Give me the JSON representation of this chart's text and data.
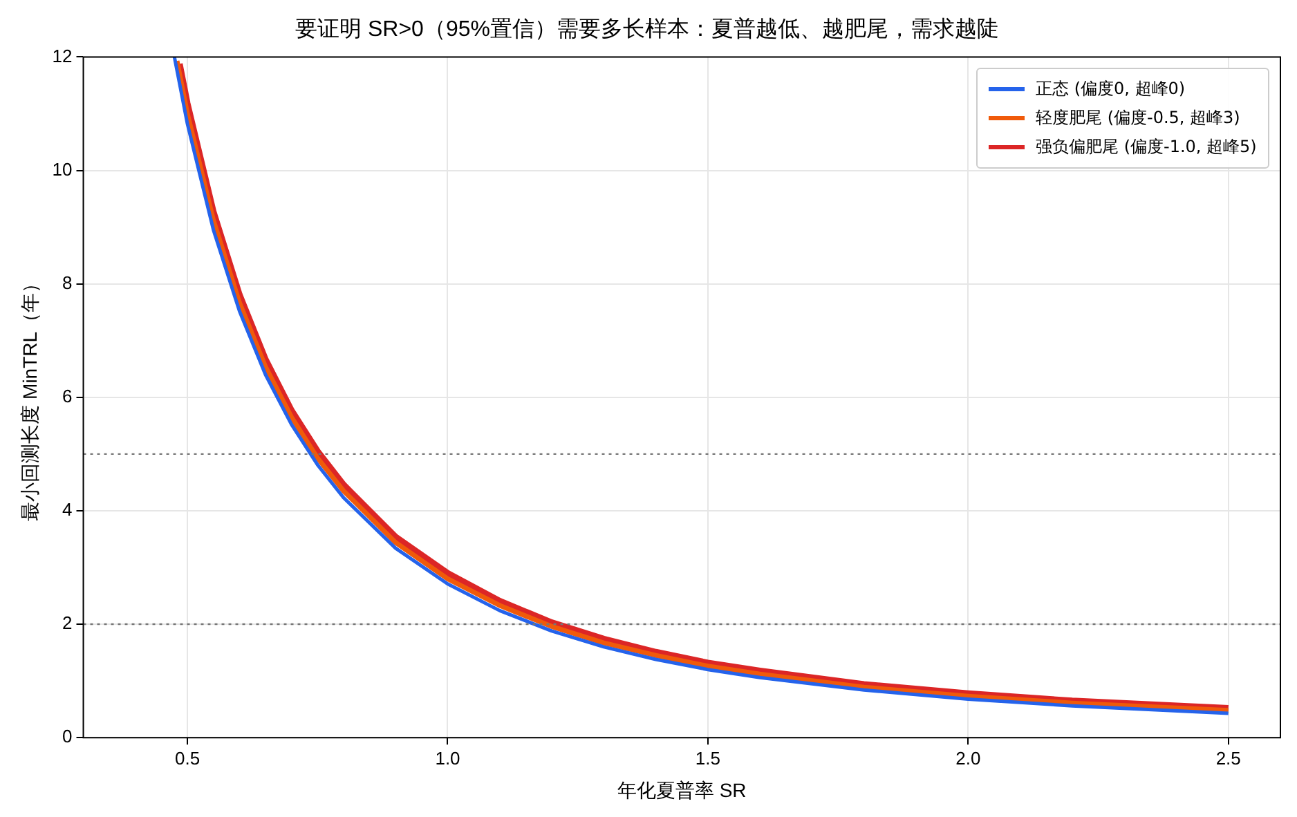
{
  "chart_data": {
    "type": "line",
    "title": "要证明 SR>0（95%置信）需要多长样本：夏普越低、越肥尾，需求越陡",
    "xlabel": "年化夏普率 SR",
    "ylabel": "最小回测长度 MinTRL（年）",
    "xlim": [
      0.3,
      2.6
    ],
    "xticks": [
      {
        "value": 0.5,
        "label": "0.5"
      },
      {
        "value": 1.0,
        "label": "1.0"
      },
      {
        "value": 1.5,
        "label": "1.5"
      },
      {
        "value": 2.0,
        "label": "2.0"
      },
      {
        "value": 2.5,
        "label": "2.5"
      }
    ],
    "ylim": [
      0,
      12
    ],
    "yticks": [
      0,
      2,
      4,
      6,
      8,
      10,
      12
    ],
    "grid": true,
    "legend": "top right",
    "marker": "none",
    "line_style": "solid",
    "series": [
      {
        "name": "正态 (偏度0, 超峰0)",
        "color": "#2563eb",
        "x": [
          0.475,
          0.5,
          0.55,
          0.6,
          0.65,
          0.7,
          0.75,
          0.8,
          0.9,
          1.0,
          1.1,
          1.2,
          1.3,
          1.4,
          1.5,
          1.6,
          1.8,
          2.0,
          2.2,
          2.5
        ],
        "values": [
          12.0,
          10.82,
          8.95,
          7.52,
          6.4,
          5.52,
          4.81,
          4.23,
          3.34,
          2.71,
          2.24,
          1.88,
          1.6,
          1.38,
          1.2,
          1.06,
          0.84,
          0.68,
          0.56,
          0.43
        ]
      },
      {
        "name": "轻度肥尾 (偏度-0.5, 超峰3)",
        "color": "#f05a0a",
        "x": [
          0.48,
          0.5,
          0.55,
          0.6,
          0.65,
          0.7,
          0.75,
          0.8,
          0.9,
          1.0,
          1.1,
          1.2,
          1.3,
          1.4,
          1.5,
          1.6,
          1.8,
          2.0,
          2.2,
          2.5
        ],
        "values": [
          11.93,
          11.0,
          9.12,
          7.67,
          6.54,
          5.65,
          4.93,
          4.35,
          3.44,
          2.8,
          2.33,
          1.96,
          1.67,
          1.45,
          1.26,
          1.12,
          0.89,
          0.73,
          0.61,
          0.48
        ]
      },
      {
        "name": "强负偏肥尾 (偏度-1.0, 超峰5)",
        "color": "#dc2626",
        "x": [
          0.485,
          0.5,
          0.55,
          0.6,
          0.65,
          0.7,
          0.75,
          0.8,
          0.9,
          1.0,
          1.1,
          1.2,
          1.3,
          1.4,
          1.5,
          1.6,
          1.8,
          2.0,
          2.2,
          2.5
        ],
        "values": [
          11.88,
          11.18,
          9.27,
          7.81,
          6.67,
          5.77,
          5.05,
          4.46,
          3.54,
          2.9,
          2.41,
          2.03,
          1.74,
          1.51,
          1.32,
          1.18,
          0.94,
          0.78,
          0.65,
          0.52
        ]
      }
    ],
    "ref_lines": [
      {
        "axis": "y",
        "value": 5,
        "color": "#777777",
        "line_style": "dotted"
      },
      {
        "axis": "y",
        "value": 2,
        "color": "#777777",
        "line_style": "dotted"
      }
    ]
  }
}
